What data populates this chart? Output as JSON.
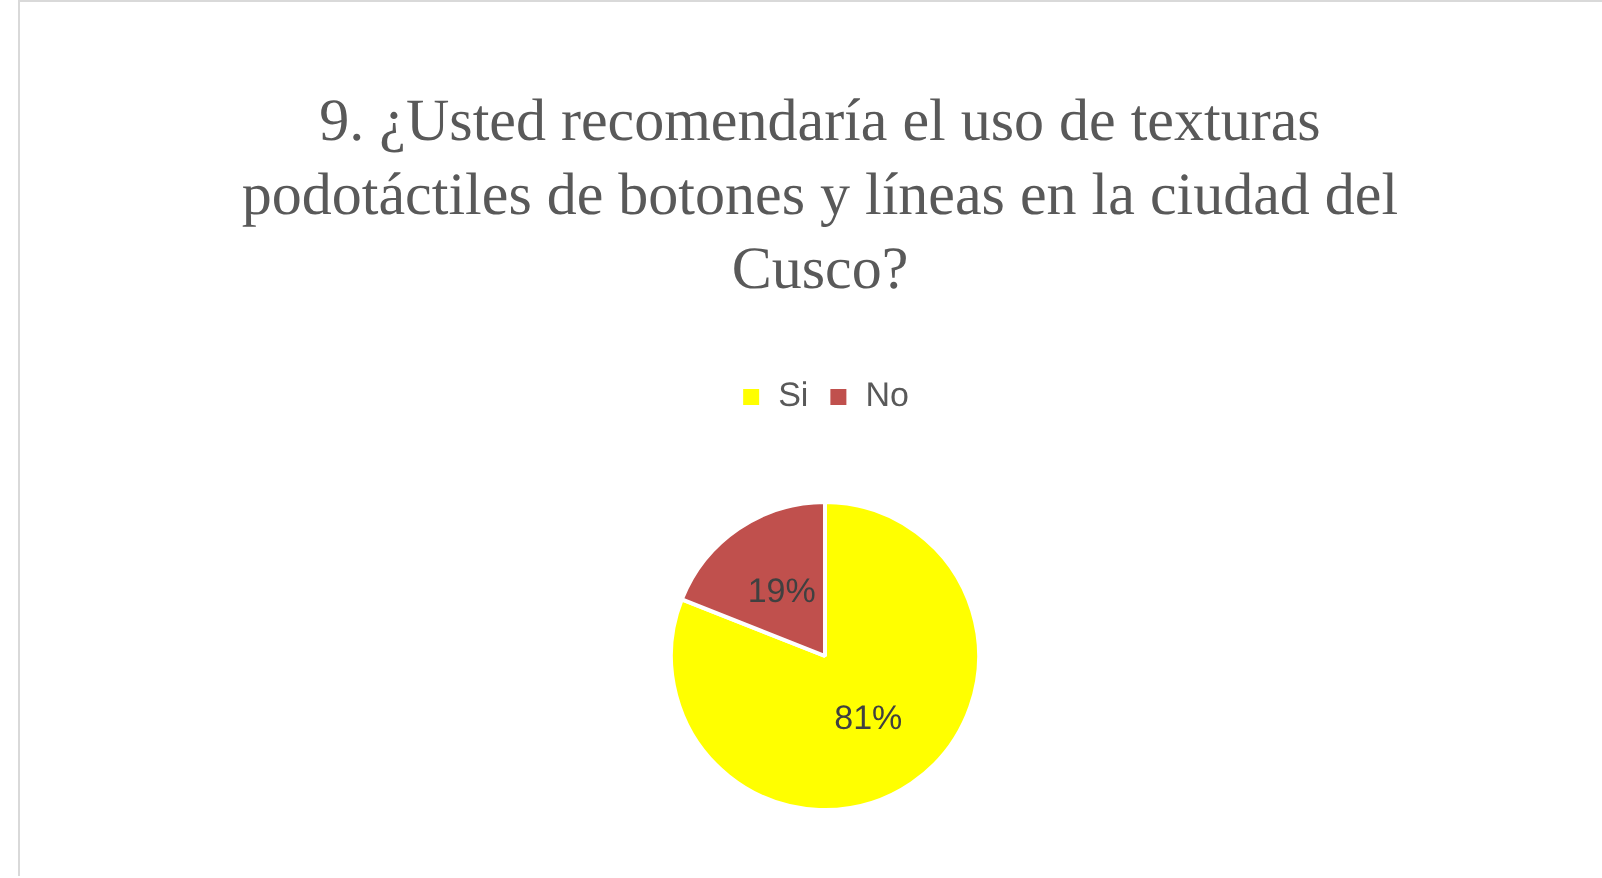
{
  "chart_data": {
    "type": "pie",
    "title": "9. ¿Usted recomendaría el uso de texturas podotáctiles de botones y líneas en la ciudad del Cusco?",
    "categories": [
      "Si",
      "No"
    ],
    "values": [
      81,
      19
    ],
    "colors": [
      "#ffff00",
      "#c0504d"
    ],
    "value_labels": [
      "81%",
      "19%"
    ],
    "legend": "top"
  }
}
